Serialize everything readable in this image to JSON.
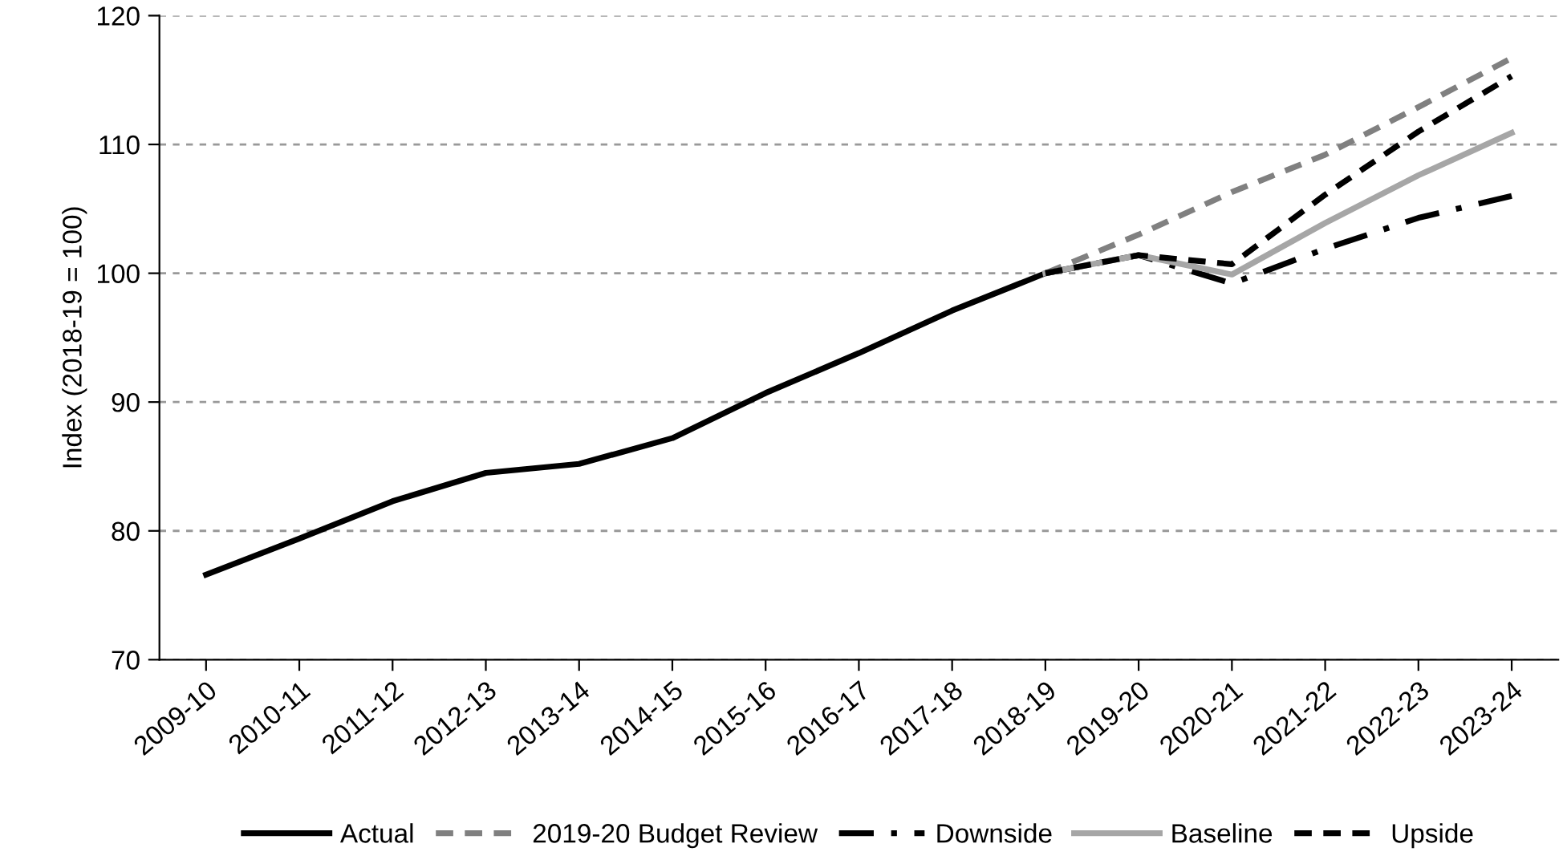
{
  "chart_data": {
    "type": "line",
    "ylabel": "Index (2018-19 = 100)",
    "categories": [
      "2009-10",
      "2010-11",
      "2011-12",
      "2012-13",
      "2013-14",
      "2014-15",
      "2015-16",
      "2016-17",
      "2017-18",
      "2018-19",
      "2019-20",
      "2020-21",
      "2021-22",
      "2022-23",
      "2023-24"
    ],
    "series": [
      {
        "name": "Actual",
        "color": "#000000",
        "line_style": "solid",
        "values": [
          76.6,
          79.4,
          82.3,
          84.5,
          85.2,
          87.2,
          90.7,
          93.8,
          97.1,
          100,
          null,
          null,
          null,
          null,
          null
        ]
      },
      {
        "name": "2019-20 Budget Review",
        "color": "#808080",
        "line_style": "dashed",
        "values": [
          null,
          null,
          null,
          null,
          null,
          null,
          null,
          null,
          null,
          100,
          103.0,
          106.3,
          109.2,
          112.9,
          116.7
        ]
      },
      {
        "name": "Downside",
        "color": "#000000",
        "line_style": "dashdot",
        "values": [
          null,
          null,
          null,
          null,
          null,
          null,
          null,
          null,
          null,
          100,
          101.4,
          99.2,
          101.9,
          104.3,
          106.0
        ]
      },
      {
        "name": "Baseline",
        "color": "#a6a6a6",
        "line_style": "solid",
        "values": [
          null,
          null,
          null,
          null,
          null,
          null,
          null,
          null,
          null,
          100,
          101.4,
          99.9,
          103.9,
          107.6,
          110.9
        ]
      },
      {
        "name": "Upside",
        "color": "#000000",
        "line_style": "dashed",
        "values": [
          null,
          null,
          null,
          null,
          null,
          null,
          null,
          null,
          null,
          100,
          101.4,
          100.7,
          106.1,
          111.0,
          115.3
        ]
      }
    ],
    "ylim": [
      70,
      120
    ],
    "yticks": [
      70,
      80,
      90,
      100,
      110,
      120
    ],
    "grid": "y",
    "legend": "bottom"
  }
}
